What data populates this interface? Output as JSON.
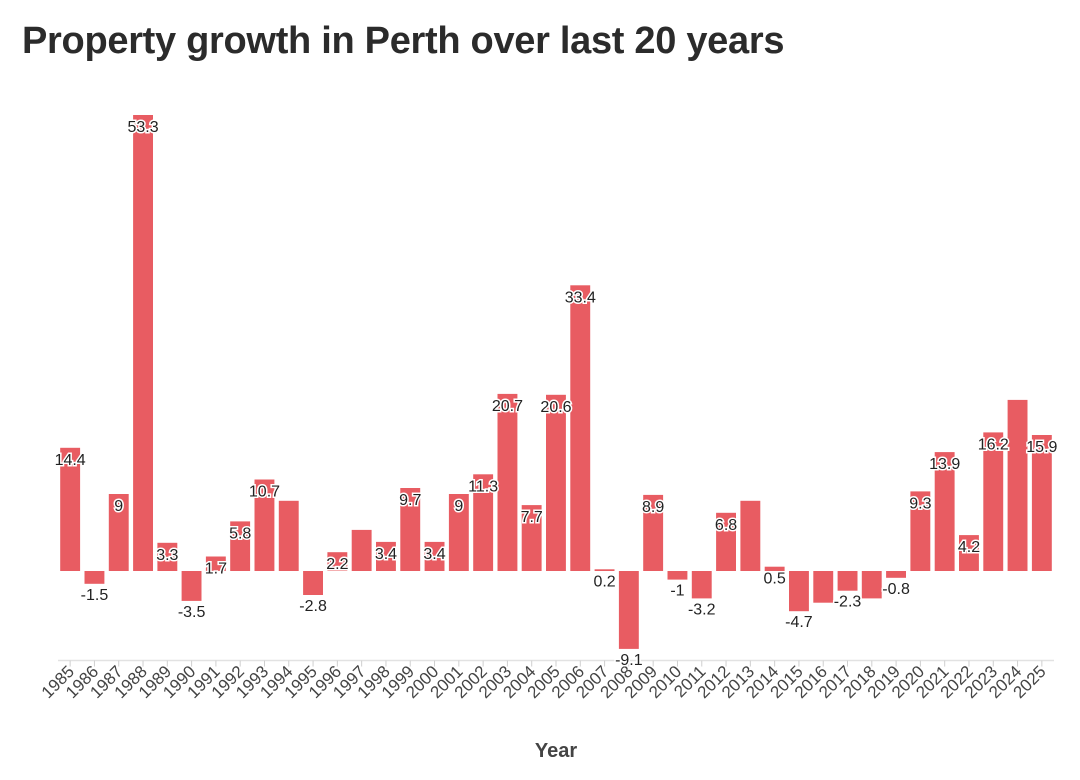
{
  "chart_data": {
    "type": "bar",
    "title": "Property growth in Perth over last 20 years",
    "xlabel": "Year",
    "ylabel": "",
    "categories": [
      "1985",
      "1986",
      "1987",
      "1988",
      "1989",
      "1990",
      "1991",
      "1992",
      "1993",
      "1994",
      "1995",
      "1996",
      "1997",
      "1998",
      "1999",
      "2000",
      "2001",
      "2002",
      "2003",
      "2004",
      "2005",
      "2006",
      "2007",
      "2008",
      "2009",
      "2010",
      "2011",
      "2012",
      "2013",
      "2014",
      "2015",
      "2016",
      "2017",
      "2018",
      "2019",
      "2020",
      "2021",
      "2022",
      "2023",
      "2024",
      "2025"
    ],
    "values": [
      14.4,
      -1.5,
      9,
      53.3,
      3.3,
      -3.5,
      1.7,
      5.8,
      10.7,
      8.2,
      -2.8,
      2.2,
      4.8,
      3.4,
      9.7,
      3.4,
      9,
      11.3,
      20.7,
      7.7,
      20.6,
      33.4,
      0.2,
      -9.1,
      8.9,
      -1,
      -3.2,
      6.8,
      8.2,
      0.5,
      -4.7,
      -3.7,
      -2.3,
      -3.2,
      -0.8,
      9.3,
      13.9,
      4.2,
      16.2,
      20,
      15.9
    ],
    "labels": [
      "14.4",
      "-1.5",
      "9",
      "53.3",
      "3.3",
      "-3.5",
      "1.7",
      "5.8",
      "10.7",
      "",
      "-2.8",
      "2.2",
      "",
      "3.4",
      "9.7",
      "3.4",
      "9",
      "11.3",
      "20.7",
      "7.7",
      "20.6",
      "33.4",
      "0.2",
      "-9.1",
      "8.9",
      "-1",
      "-3.2",
      "6.8",
      "",
      "0.5",
      "-4.7",
      "",
      "-2.3",
      "",
      "-0.8",
      "9.3",
      "13.9",
      "4.2",
      "16.2",
      "",
      "15.9"
    ],
    "ylim": [
      -10,
      55
    ],
    "grid": false,
    "bar_color": "#e85c62"
  }
}
